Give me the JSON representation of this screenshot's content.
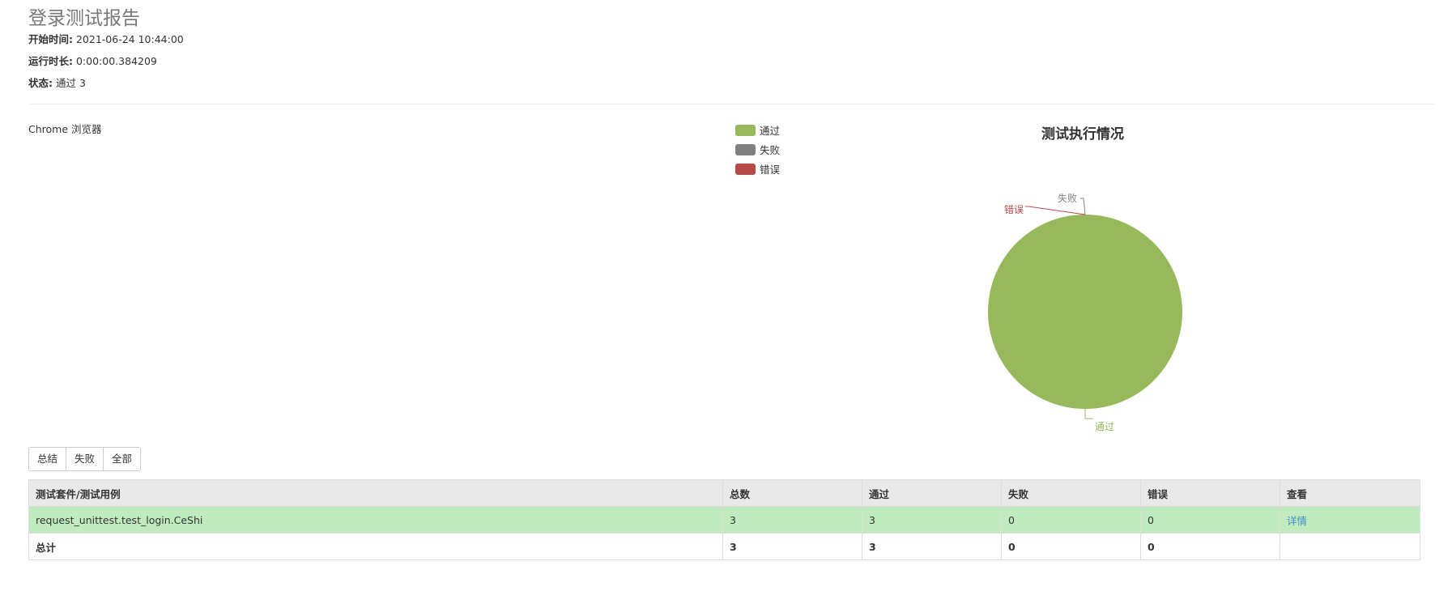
{
  "report": {
    "title": "登录测试报告",
    "start_time_label": "开始时间:",
    "start_time_value": "2021-06-24 10:44:00",
    "duration_label": "运行时长:",
    "duration_value": "0:00:00.384209",
    "status_label": "状态:",
    "status_value": "通过 3"
  },
  "browser_label": "Chrome 浏览器",
  "chart": {
    "title": "测试执行情况",
    "legend": [
      {
        "label": "通过",
        "color": "#97b85b"
      },
      {
        "label": "失败",
        "color": "#808080"
      },
      {
        "label": "错误",
        "color": "#b84949"
      }
    ]
  },
  "chart_data": {
    "type": "pie",
    "title": "测试执行情况",
    "labels": [
      "通过",
      "失败",
      "错误"
    ],
    "values": [
      3,
      0,
      0
    ],
    "colors": [
      "#97b85b",
      "#808080",
      "#b84949"
    ],
    "legend_position": "top-left"
  },
  "filters": {
    "summary": "总结",
    "failed": "失败",
    "all": "全部"
  },
  "table": {
    "headers": [
      "测试套件/测试用例",
      "总数",
      "通过",
      "失败",
      "错误",
      "查看"
    ],
    "rows": [
      {
        "name": "request_unittest.test_login.CeShi",
        "total": "3",
        "passed": "3",
        "failed": "0",
        "errors": "0",
        "view": "详情"
      }
    ],
    "total_row": {
      "name": "总计",
      "total": "3",
      "passed": "3",
      "failed": "0",
      "errors": "0"
    }
  }
}
